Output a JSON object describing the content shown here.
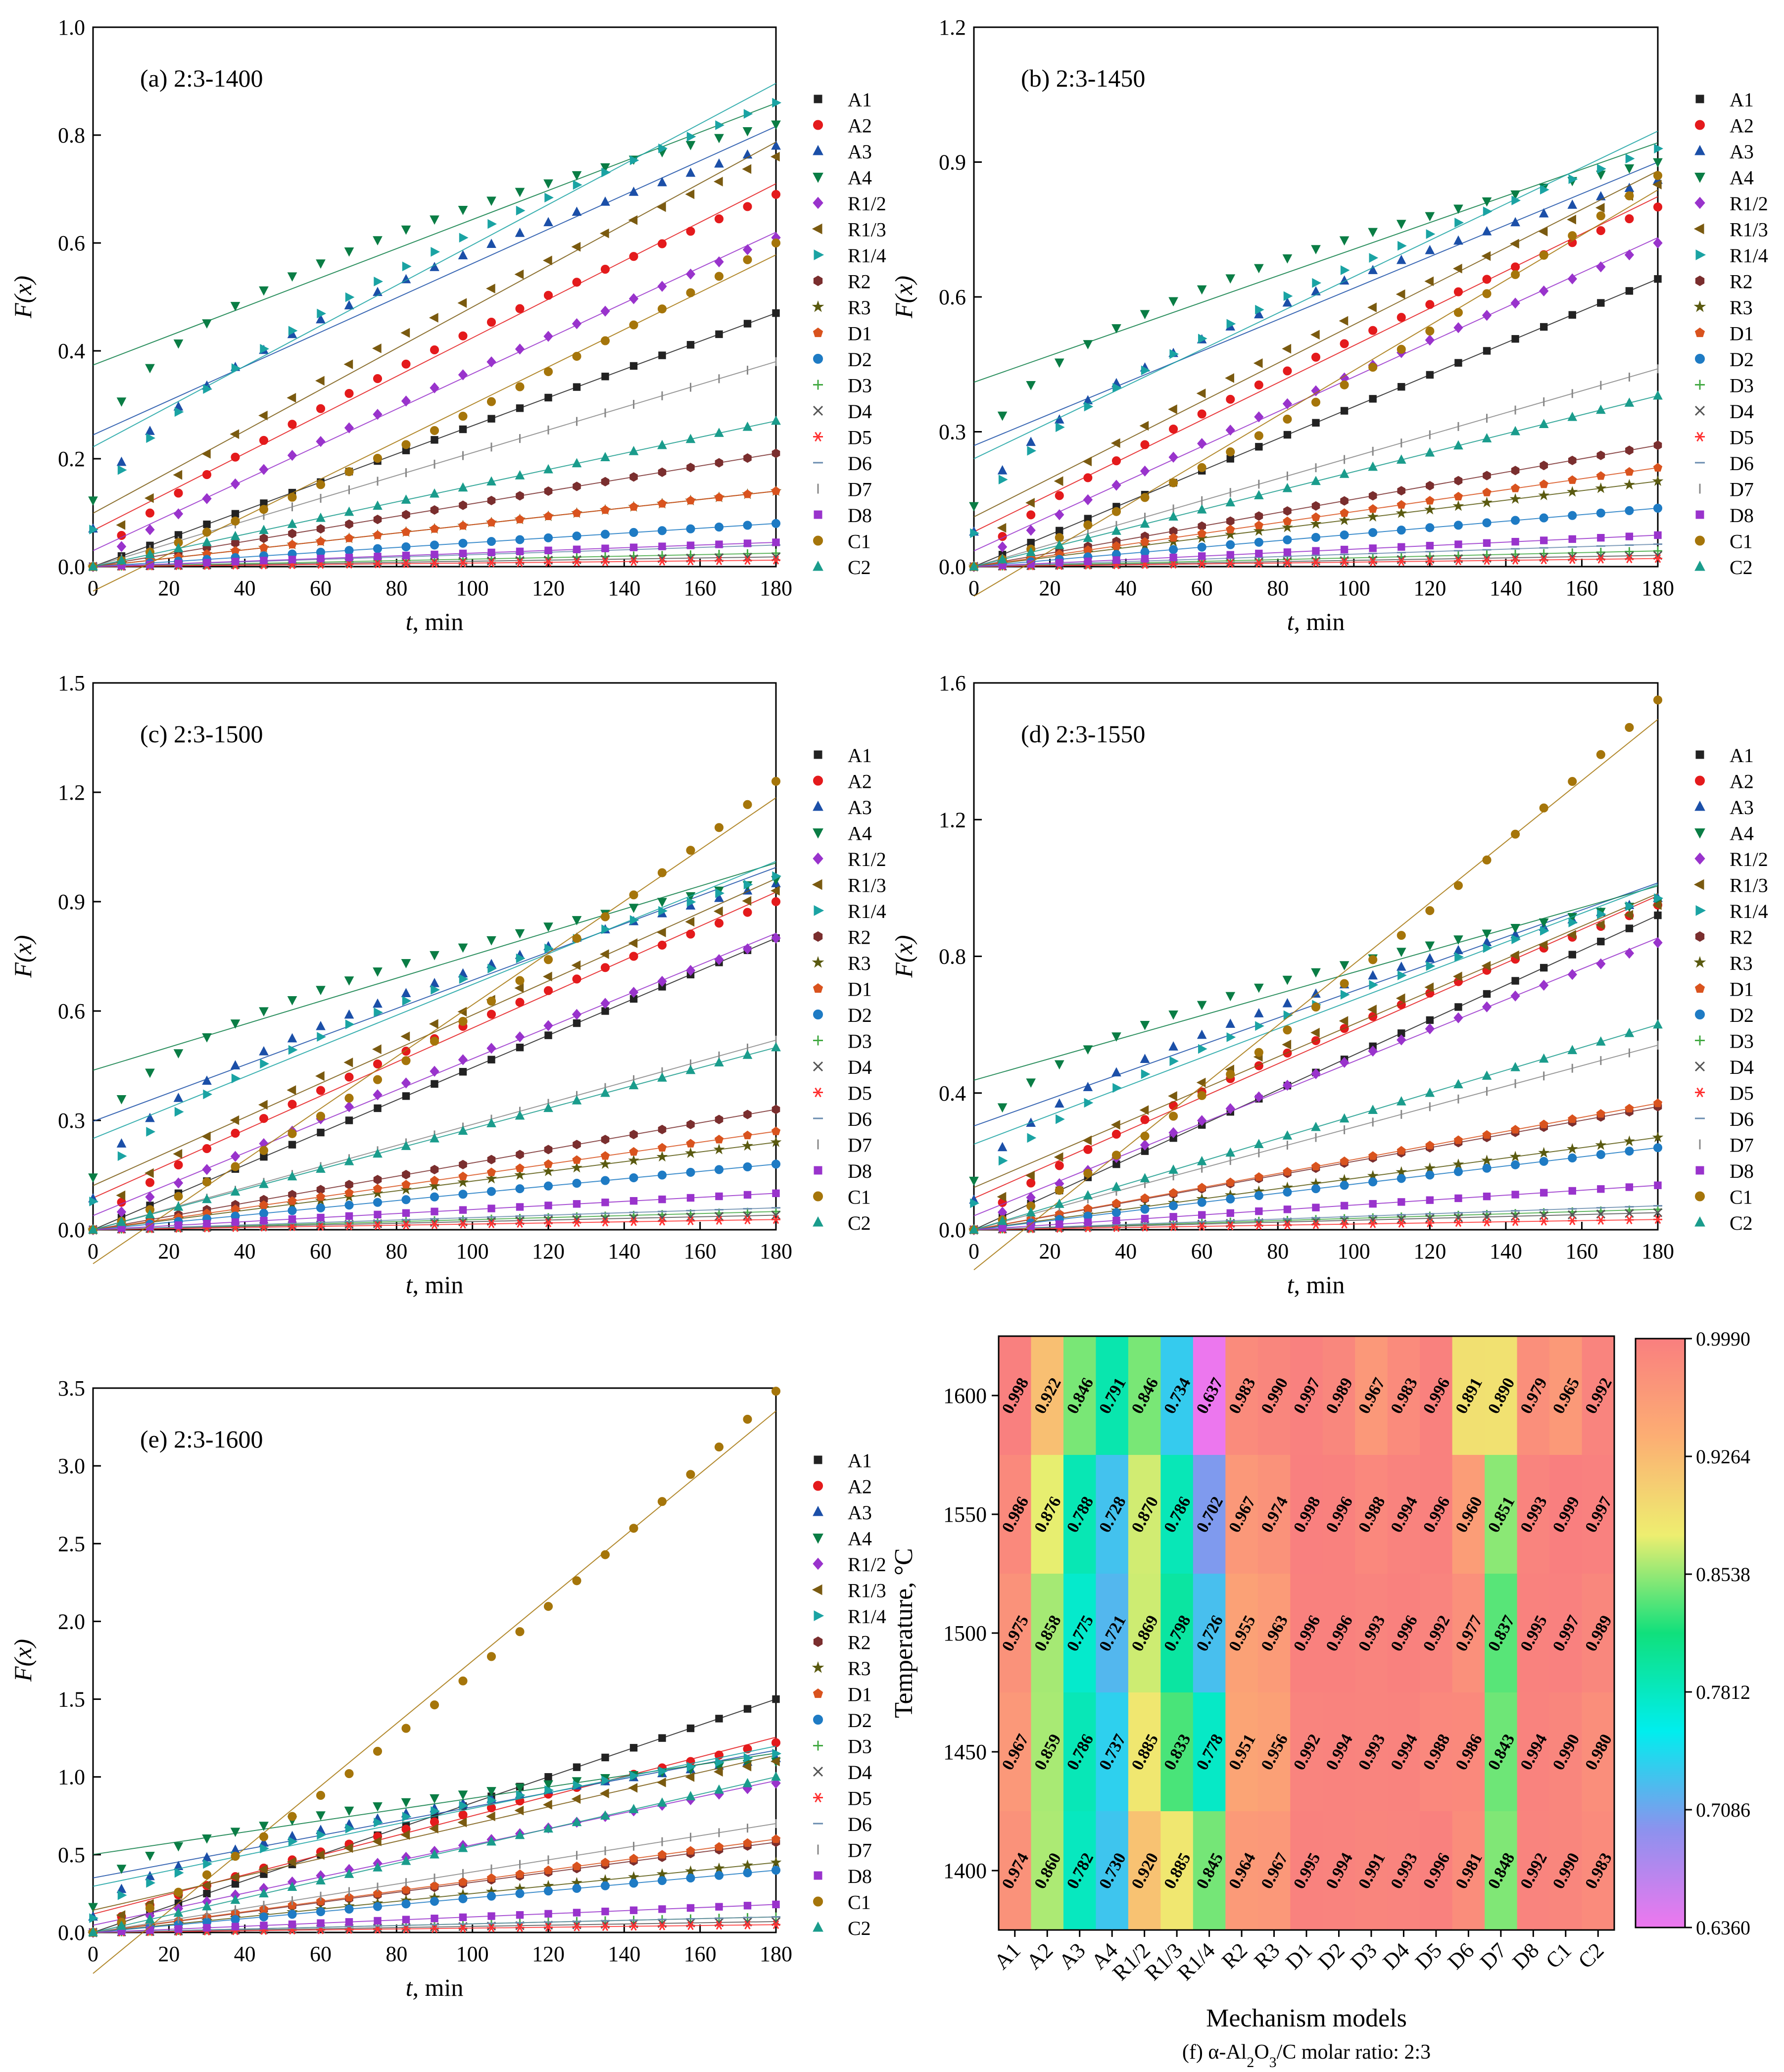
{
  "models": [
    "A1",
    "A2",
    "A3",
    "A4",
    "R1/2",
    "R1/3",
    "R1/4",
    "R2",
    "R3",
    "D1",
    "D2",
    "D3",
    "D4",
    "D5",
    "D6",
    "D7",
    "D8",
    "C1",
    "C2"
  ],
  "styles": {
    "A1": {
      "color": "#222222",
      "marker": "square"
    },
    "A2": {
      "color": "#e41a1c",
      "marker": "circle"
    },
    "A3": {
      "color": "#1b4fa8",
      "marker": "triangle-up"
    },
    "A4": {
      "color": "#0a7d45",
      "marker": "triangle-down"
    },
    "R1/2": {
      "color": "#9933cc",
      "marker": "diamond"
    },
    "R1/3": {
      "color": "#7a5a10",
      "marker": "triangle-left"
    },
    "R1/4": {
      "color": "#1aa3a3",
      "marker": "triangle-right"
    },
    "R2": {
      "color": "#7a2e2e",
      "marker": "hexagon"
    },
    "R3": {
      "color": "#5a5a10",
      "marker": "star"
    },
    "D1": {
      "color": "#d9531e",
      "marker": "pentagon"
    },
    "D2": {
      "color": "#1e7bc4",
      "marker": "circle"
    },
    "D3": {
      "color": "#44aa44",
      "marker": "plus"
    },
    "D4": {
      "color": "#555555",
      "marker": "x"
    },
    "D5": {
      "color": "#ff3333",
      "marker": "asterisk"
    },
    "D6": {
      "color": "#6a8caf",
      "marker": "hline"
    },
    "D7": {
      "color": "#888888",
      "marker": "vline"
    },
    "D8": {
      "color": "#9933cc",
      "marker": "square"
    },
    "C1": {
      "color": "#a5750a",
      "marker": "circle"
    },
    "C2": {
      "color": "#1a9c8c",
      "marker": "triangle-up"
    }
  },
  "chart_data": [
    {
      "type": "scatter",
      "panel_label": "(a)  2:3-1400",
      "xlabel_italic": "t",
      "xlabel_rest": ", min",
      "ylabel": "F(x)",
      "xlim": [
        0,
        180
      ],
      "ylim": [
        0,
        1.0
      ],
      "xticks": [
        0,
        20,
        40,
        60,
        80,
        100,
        120,
        140,
        160,
        180
      ],
      "yticks": [
        0.0,
        0.2,
        0.4,
        0.6,
        0.8,
        1.0
      ],
      "ytick_labels": [
        "0.0",
        "0.2",
        "0.4",
        "0.6",
        "0.8",
        "1.0"
      ],
      "final_values": {
        "A1": 0.47,
        "A2": 0.69,
        "A3": 0.78,
        "A4": 0.82,
        "R1/2": 0.61,
        "R1/3": 0.76,
        "R1/4": 0.86,
        "R2": 0.21,
        "R3": 0.14,
        "D1": 0.14,
        "D2": 0.08,
        "D3": 0.025,
        "D4": 0.018,
        "D5": 0.012,
        "D6": 0.04,
        "D7": 0.38,
        "D8": 0.045,
        "C1": 0.6,
        "C2": 0.27
      }
    },
    {
      "type": "scatter",
      "panel_label": "(b)  2:3-1450",
      "xlabel_italic": "t",
      "xlabel_rest": ", min",
      "ylabel": "F(x)",
      "xlim": [
        0,
        180
      ],
      "ylim": [
        0,
        1.2
      ],
      "xticks": [
        0,
        20,
        40,
        60,
        80,
        100,
        120,
        140,
        160,
        180
      ],
      "yticks": [
        0.0,
        0.3,
        0.6,
        0.9,
        1.2
      ],
      "ytick_labels": [
        "0.0",
        "0.3",
        "0.6",
        "0.9",
        "1.2"
      ],
      "final_values": {
        "A1": 0.64,
        "A2": 0.8,
        "A3": 0.86,
        "A4": 0.9,
        "R1/2": 0.72,
        "R1/3": 0.85,
        "R1/4": 0.93,
        "R2": 0.27,
        "R3": 0.19,
        "D1": 0.22,
        "D2": 0.13,
        "D3": 0.035,
        "D4": 0.025,
        "D5": 0.018,
        "D6": 0.05,
        "D7": 0.44,
        "D8": 0.07,
        "C1": 0.87,
        "C2": 0.38
      }
    },
    {
      "type": "scatter",
      "panel_label": "(c)  2:3-1500",
      "xlabel_italic": "t",
      "xlabel_rest": ", min",
      "ylabel": "F(x)",
      "xlim": [
        0,
        180
      ],
      "ylim": [
        0,
        1.5
      ],
      "xticks": [
        0,
        20,
        40,
        60,
        80,
        100,
        120,
        140,
        160,
        180
      ],
      "yticks": [
        0.0,
        0.3,
        0.6,
        0.9,
        1.2,
        1.5
      ],
      "ytick_labels": [
        "0.0",
        "0.3",
        "0.6",
        "0.9",
        "1.2",
        "1.5"
      ],
      "final_values": {
        "A1": 0.8,
        "A2": 0.9,
        "A3": 0.95,
        "A4": 0.96,
        "R1/2": 0.8,
        "R1/3": 0.93,
        "R1/4": 0.97,
        "R2": 0.33,
        "R3": 0.24,
        "D1": 0.27,
        "D2": 0.18,
        "D3": 0.05,
        "D4": 0.04,
        "D5": 0.028,
        "D6": 0.06,
        "D7": 0.52,
        "D8": 0.1,
        "C1": 1.23,
        "C2": 0.5
      }
    },
    {
      "type": "scatter",
      "panel_label": "(d)  2:3-1550",
      "xlabel_italic": "t",
      "xlabel_rest": ", min",
      "ylabel": "F(x)",
      "xlim": [
        0,
        180
      ],
      "ylim": [
        0,
        1.6
      ],
      "xticks": [
        0,
        20,
        40,
        60,
        80,
        100,
        120,
        140,
        160,
        180
      ],
      "yticks": [
        0.0,
        0.4,
        0.8,
        1.2,
        1.6
      ],
      "ytick_labels": [
        "0.0",
        "0.4",
        "0.8",
        "1.2",
        "1.6"
      ],
      "final_values": {
        "A1": 0.92,
        "A2": 0.95,
        "A3": 0.97,
        "A4": 0.96,
        "R1/2": 0.84,
        "R1/3": 0.95,
        "R1/4": 0.97,
        "R2": 0.36,
        "R3": 0.27,
        "D1": 0.37,
        "D2": 0.24,
        "D3": 0.06,
        "D4": 0.05,
        "D5": 0.03,
        "D6": 0.07,
        "D7": 0.54,
        "D8": 0.13,
        "C1": 1.55,
        "C2": 0.6
      }
    },
    {
      "type": "scatter",
      "panel_label": "(e)  2:3-1600",
      "xlabel_italic": "t",
      "xlabel_rest": ", min",
      "ylabel": "F(x)",
      "xlim": [
        0,
        180
      ],
      "ylim": [
        0,
        3.5
      ],
      "xticks": [
        0,
        20,
        40,
        60,
        80,
        100,
        120,
        140,
        160,
        180
      ],
      "yticks": [
        0.0,
        0.5,
        1.0,
        1.5,
        2.0,
        2.5,
        3.0,
        3.5
      ],
      "ytick_labels": [
        "0.0",
        "0.5",
        "1.0",
        "1.5",
        "2.0",
        "2.5",
        "3.0",
        "3.5"
      ],
      "final_values": {
        "A1": 1.5,
        "A2": 1.22,
        "A3": 1.12,
        "A4": 1.1,
        "R1/2": 0.96,
        "R1/3": 1.1,
        "R1/4": 1.15,
        "R2": 0.58,
        "R3": 0.45,
        "D1": 0.6,
        "D2": 0.4,
        "D3": 0.1,
        "D4": 0.07,
        "D5": 0.05,
        "D6": 0.1,
        "D7": 0.7,
        "D8": 0.18,
        "C1": 3.48,
        "C2": 1.0
      }
    },
    {
      "type": "heatmap",
      "panel_label": "(f) α-Al",
      "caption_sub1": "2",
      "caption_mid": "O",
      "caption_sub2": "3",
      "caption_tail": "/C molar ratio: 2:3",
      "xlabel": "Mechanism models",
      "ylabel": "Temperature, °C",
      "rows": [
        "1600",
        "1550",
        "1500",
        "1450",
        "1400"
      ],
      "columns": [
        "A1",
        "A2",
        "A3",
        "A4",
        "R1/2",
        "R1/3",
        "R1/4",
        "R2",
        "R3",
        "D1",
        "D2",
        "D3",
        "D4",
        "D5",
        "D6",
        "D7",
        "D8",
        "C1",
        "C2"
      ],
      "values": [
        [
          0.998,
          0.922,
          0.846,
          0.791,
          0.846,
          0.734,
          0.637,
          0.983,
          0.99,
          0.997,
          0.989,
          0.967,
          0.983,
          0.996,
          0.891,
          0.89,
          0.979,
          0.965,
          0.992
        ],
        [
          0.986,
          0.876,
          0.788,
          0.728,
          0.87,
          0.786,
          0.702,
          0.967,
          0.974,
          0.998,
          0.996,
          0.988,
          0.994,
          0.996,
          0.96,
          0.851,
          0.993,
          0.999,
          0.997
        ],
        [
          0.975,
          0.858,
          0.775,
          0.721,
          0.869,
          0.798,
          0.726,
          0.955,
          0.963,
          0.996,
          0.996,
          0.993,
          0.996,
          0.992,
          0.977,
          0.837,
          0.995,
          0.997,
          0.989
        ],
        [
          0.967,
          0.859,
          0.786,
          0.737,
          0.885,
          0.833,
          0.778,
          0.951,
          0.956,
          0.992,
          0.994,
          0.993,
          0.994,
          0.988,
          0.986,
          0.843,
          0.994,
          0.99,
          0.98
        ],
        [
          0.974,
          0.86,
          0.782,
          0.73,
          0.92,
          0.885,
          0.845,
          0.964,
          0.967,
          0.995,
          0.994,
          0.991,
          0.993,
          0.996,
          0.981,
          0.848,
          0.992,
          0.99,
          0.983
        ]
      ],
      "value_labels": [
        [
          "0.998",
          "0.922",
          "0.846",
          "0.791",
          "0.846",
          "0.734",
          "0.637",
          "0.983",
          "0.990",
          "0.997",
          "0.989",
          "0.967",
          "0.983",
          "0.996",
          "0.891",
          "0.890",
          "0.979",
          "0.965",
          "0.992"
        ],
        [
          "0.986",
          "0.876",
          "0.788",
          "0.728",
          "0.870",
          "0.786",
          "0.702",
          "0.967",
          "0.974",
          "0.998",
          "0.996",
          "0.988",
          "0.994",
          "0.996",
          "0.960",
          "0.851",
          "0.993",
          "0.999",
          "0.997"
        ],
        [
          "0.975",
          "0.858",
          "0.775",
          "0.721",
          "0.869",
          "0.798",
          "0.726",
          "0.955",
          "0.963",
          "0.996",
          "0.996",
          "0.993",
          "0.996",
          "0.992",
          "0.977",
          "0.837",
          "0.995",
          "0.997",
          "0.989"
        ],
        [
          "0.967",
          "0.859",
          "0.786",
          "0.737",
          "0.885",
          "0.833",
          "0.778",
          "0.951",
          "0.956",
          "0.992",
          "0.994",
          "0.993",
          "0.994",
          "0.988",
          "0.986",
          "0.843",
          "0.994",
          "0.990",
          "0.980"
        ],
        [
          "0.974",
          "0.860",
          "0.782",
          "0.730",
          "0.920",
          "0.885",
          "0.845",
          "0.964",
          "0.967",
          "0.995",
          "0.994",
          "0.991",
          "0.993",
          "0.996",
          "0.981",
          "0.848",
          "0.992",
          "0.990",
          "0.983"
        ]
      ],
      "colorbar_ticks": [
        0.636,
        0.7086,
        0.7812,
        0.8538,
        0.9264,
        0.999
      ],
      "colorbar_labels": [
        "0.6360",
        "0.7086",
        "0.7812",
        "0.8538",
        "0.9264",
        "0.9990"
      ],
      "color_range": [
        0.636,
        0.999
      ],
      "color_stops": [
        "#ee77ee",
        "#8c92ee",
        "#00eeee",
        "#10e07c",
        "#eeee70",
        "#fcae73",
        "#f97f7f"
      ]
    }
  ]
}
